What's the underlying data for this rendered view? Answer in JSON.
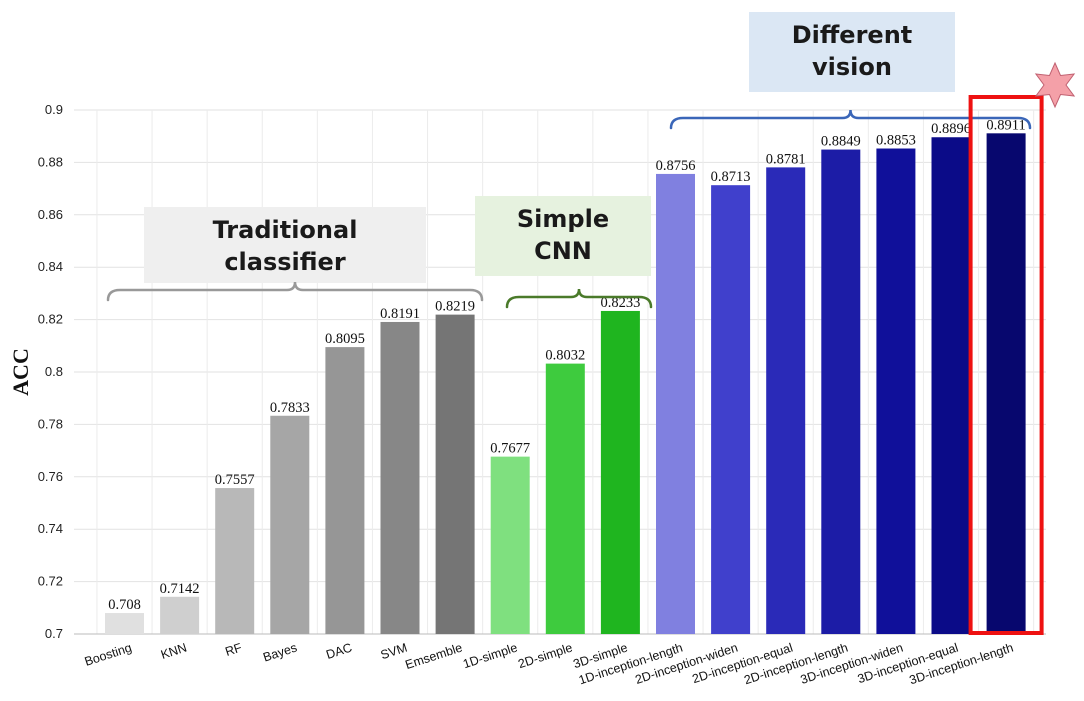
{
  "chart_data": {
    "type": "bar",
    "ylabel": "ACC",
    "xlabel": "",
    "ylim": [
      0.7,
      0.9
    ],
    "yticks": [
      "0.7",
      "0.72",
      "0.74",
      "0.76",
      "0.78",
      "0.8",
      "0.82",
      "0.84",
      "0.86",
      "0.88",
      "0.9"
    ],
    "grid": true,
    "bars": [
      {
        "category": "Boosting",
        "value": 0.708,
        "label": "0.708",
        "color": "#e0e0e0"
      },
      {
        "category": "KNN",
        "value": 0.7142,
        "label": "0.7142",
        "color": "#cfcfcf"
      },
      {
        "category": "RF",
        "value": 0.7557,
        "label": "0.7557",
        "color": "#b8b8b8"
      },
      {
        "category": "Bayes",
        "value": 0.7833,
        "label": "0.7833",
        "color": "#a6a6a6"
      },
      {
        "category": "DAC",
        "value": 0.8095,
        "label": "0.8095",
        "color": "#969696"
      },
      {
        "category": "SVM",
        "value": 0.8191,
        "label": "0.8191",
        "color": "#878787"
      },
      {
        "category": "Emsemble",
        "value": 0.8219,
        "label": "0.8219",
        "color": "#757575"
      },
      {
        "category": "1D-simple",
        "value": 0.7677,
        "label": "0.7677",
        "color": "#7fe07f"
      },
      {
        "category": "2D-simple",
        "value": 0.8032,
        "label": "0.8032",
        "color": "#3ecb3e"
      },
      {
        "category": "3D-simple",
        "value": 0.8233,
        "label": "0.8233",
        "color": "#1fb51f"
      },
      {
        "category": "1D-inception-length",
        "value": 0.8756,
        "label": "0.8756",
        "color": "#8080e0"
      },
      {
        "category": "2D-inception-widen",
        "value": 0.8713,
        "label": "0.8713",
        "color": "#4040cc"
      },
      {
        "category": "2D-inception-equal",
        "value": 0.8781,
        "label": "0.8781",
        "color": "#2a2ab8"
      },
      {
        "category": "2D-inception-length",
        "value": 0.8849,
        "label": "0.8849",
        "color": "#1c1ca6"
      },
      {
        "category": "3D-inception-widen",
        "value": 0.8853,
        "label": "0.8853",
        "color": "#10109a"
      },
      {
        "category": "3D-inception-equal",
        "value": 0.8896,
        "label": "0.8896",
        "color": "#0b0b88"
      },
      {
        "category": "3D-inception-length",
        "value": 0.8911,
        "label": "0.8911",
        "color": "#07076e"
      }
    ],
    "groups": [
      {
        "lines": [
          "Traditional",
          "classifier"
        ],
        "box_color": "#efefef",
        "brace_color": "#999999"
      },
      {
        "lines": [
          "Simple",
          "CNN"
        ],
        "box_color": "#e6f2df",
        "brace_color": "#4a7a2a"
      },
      {
        "lines": [
          "Different",
          "vision"
        ],
        "box_color": "#dbe7f4",
        "brace_color": "#3a66b8"
      }
    ],
    "highlight": {
      "category": "3D-inception-length",
      "color": "#ee1111",
      "star_color": "#f4a0a8"
    }
  }
}
